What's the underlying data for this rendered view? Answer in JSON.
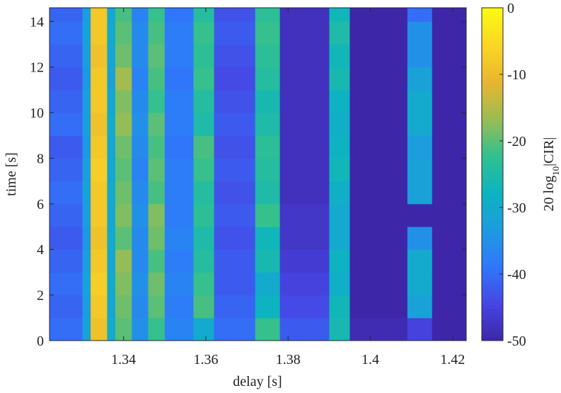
{
  "chart_data": {
    "type": "heatmap",
    "xlabel": "delay [s]",
    "ylabel": "time [s]",
    "colorbar_label": {
      "text": "20 log",
      "subscript": "10",
      "suffix": "|CIR|"
    },
    "xlim": [
      1.322,
      1.4233
    ],
    "xticks": [
      1.34,
      1.36,
      1.38,
      1.4,
      1.42
    ],
    "ylim": [
      0,
      14.6
    ],
    "yticks": [
      0,
      2,
      4,
      6,
      8,
      10,
      12,
      14
    ],
    "clim": [
      -50,
      0
    ],
    "cticks": [
      0,
      -10,
      -20,
      -30,
      -40,
      -50
    ],
    "colormap": [
      "#3e26a8",
      "#4745e3",
      "#2f77fb",
      "#1e9be0",
      "#0cb4c0",
      "#31c08f",
      "#9abd53",
      "#e8b62f",
      "#fbd624",
      "#f9fb14"
    ],
    "x_edges": [
      1.322,
      1.33,
      1.332,
      1.336,
      1.338,
      1.342,
      1.346,
      1.35,
      1.357,
      1.362,
      1.372,
      1.378,
      1.39,
      1.395,
      1.409,
      1.415,
      1.4233
    ],
    "y_edges": [
      0,
      1,
      2,
      3,
      4,
      5,
      6,
      7,
      8,
      9,
      10,
      11,
      12,
      13,
      14,
      14.6
    ],
    "z": [
      [
        -40,
        -32,
        -9,
        -30,
        -20,
        -35,
        -22,
        -37,
        -30,
        -40,
        -22,
        -42,
        -26,
        -49,
        -45,
        -50
      ],
      [
        -41,
        -33,
        -8,
        -31,
        -19,
        -36,
        -20,
        -38,
        -21,
        -41,
        -28,
        -44,
        -27,
        -50,
        -32,
        -50
      ],
      [
        -40,
        -32,
        -7,
        -30,
        -18,
        -35,
        -19,
        -37,
        -22,
        -42,
        -30,
        -45,
        -29,
        -50,
        -30,
        -50
      ],
      [
        -41,
        -33,
        -8,
        -31,
        -17,
        -36,
        -21,
        -38,
        -24,
        -42,
        -26,
        -46,
        -28,
        -50,
        -30,
        -50
      ],
      [
        -42,
        -34,
        -9,
        -30,
        -20,
        -36,
        -19,
        -37,
        -25,
        -43,
        -27,
        -47,
        -30,
        -50,
        -35,
        -50
      ],
      [
        -41,
        -33,
        -8,
        -31,
        -18,
        -35,
        -18,
        -38,
        -23,
        -42,
        -22,
        -47,
        -30,
        -50,
        -50,
        -50
      ],
      [
        -40,
        -32,
        -8,
        -30,
        -19,
        -36,
        -21,
        -38,
        -24,
        -43,
        -25,
        -48,
        -29,
        -50,
        -32,
        -50
      ],
      [
        -41,
        -33,
        -7,
        -31,
        -20,
        -37,
        -20,
        -38,
        -22,
        -42,
        -24,
        -48,
        -27,
        -50,
        -32,
        -50
      ],
      [
        -42,
        -34,
        -8,
        -31,
        -19,
        -36,
        -21,
        -39,
        -21,
        -43,
        -23,
        -48,
        -28,
        -50,
        -33,
        -50
      ],
      [
        -40,
        -33,
        -9,
        -30,
        -17,
        -35,
        -20,
        -38,
        -25,
        -42,
        -25,
        -48,
        -29,
        -50,
        -30,
        -50
      ],
      [
        -41,
        -33,
        -8,
        -31,
        -18,
        -36,
        -22,
        -38,
        -24,
        -43,
        -26,
        -48,
        -28,
        -50,
        -30,
        -50
      ],
      [
        -42,
        -34,
        -8,
        -32,
        -16,
        -37,
        -21,
        -39,
        -22,
        -44,
        -24,
        -48,
        -26,
        -50,
        -32,
        -50
      ],
      [
        -41,
        -33,
        -9,
        -31,
        -19,
        -36,
        -20,
        -38,
        -23,
        -43,
        -23,
        -48,
        -27,
        -50,
        -35,
        -50
      ],
      [
        -40,
        -32,
        -8,
        -30,
        -20,
        -36,
        -21,
        -38,
        -22,
        -42,
        -22,
        -48,
        -25,
        -50,
        -35,
        -50
      ],
      [
        -41,
        -33,
        -8,
        -31,
        -21,
        -37,
        -22,
        -39,
        -24,
        -43,
        -23,
        -48,
        -27,
        -50,
        -40,
        -50
      ]
    ]
  }
}
